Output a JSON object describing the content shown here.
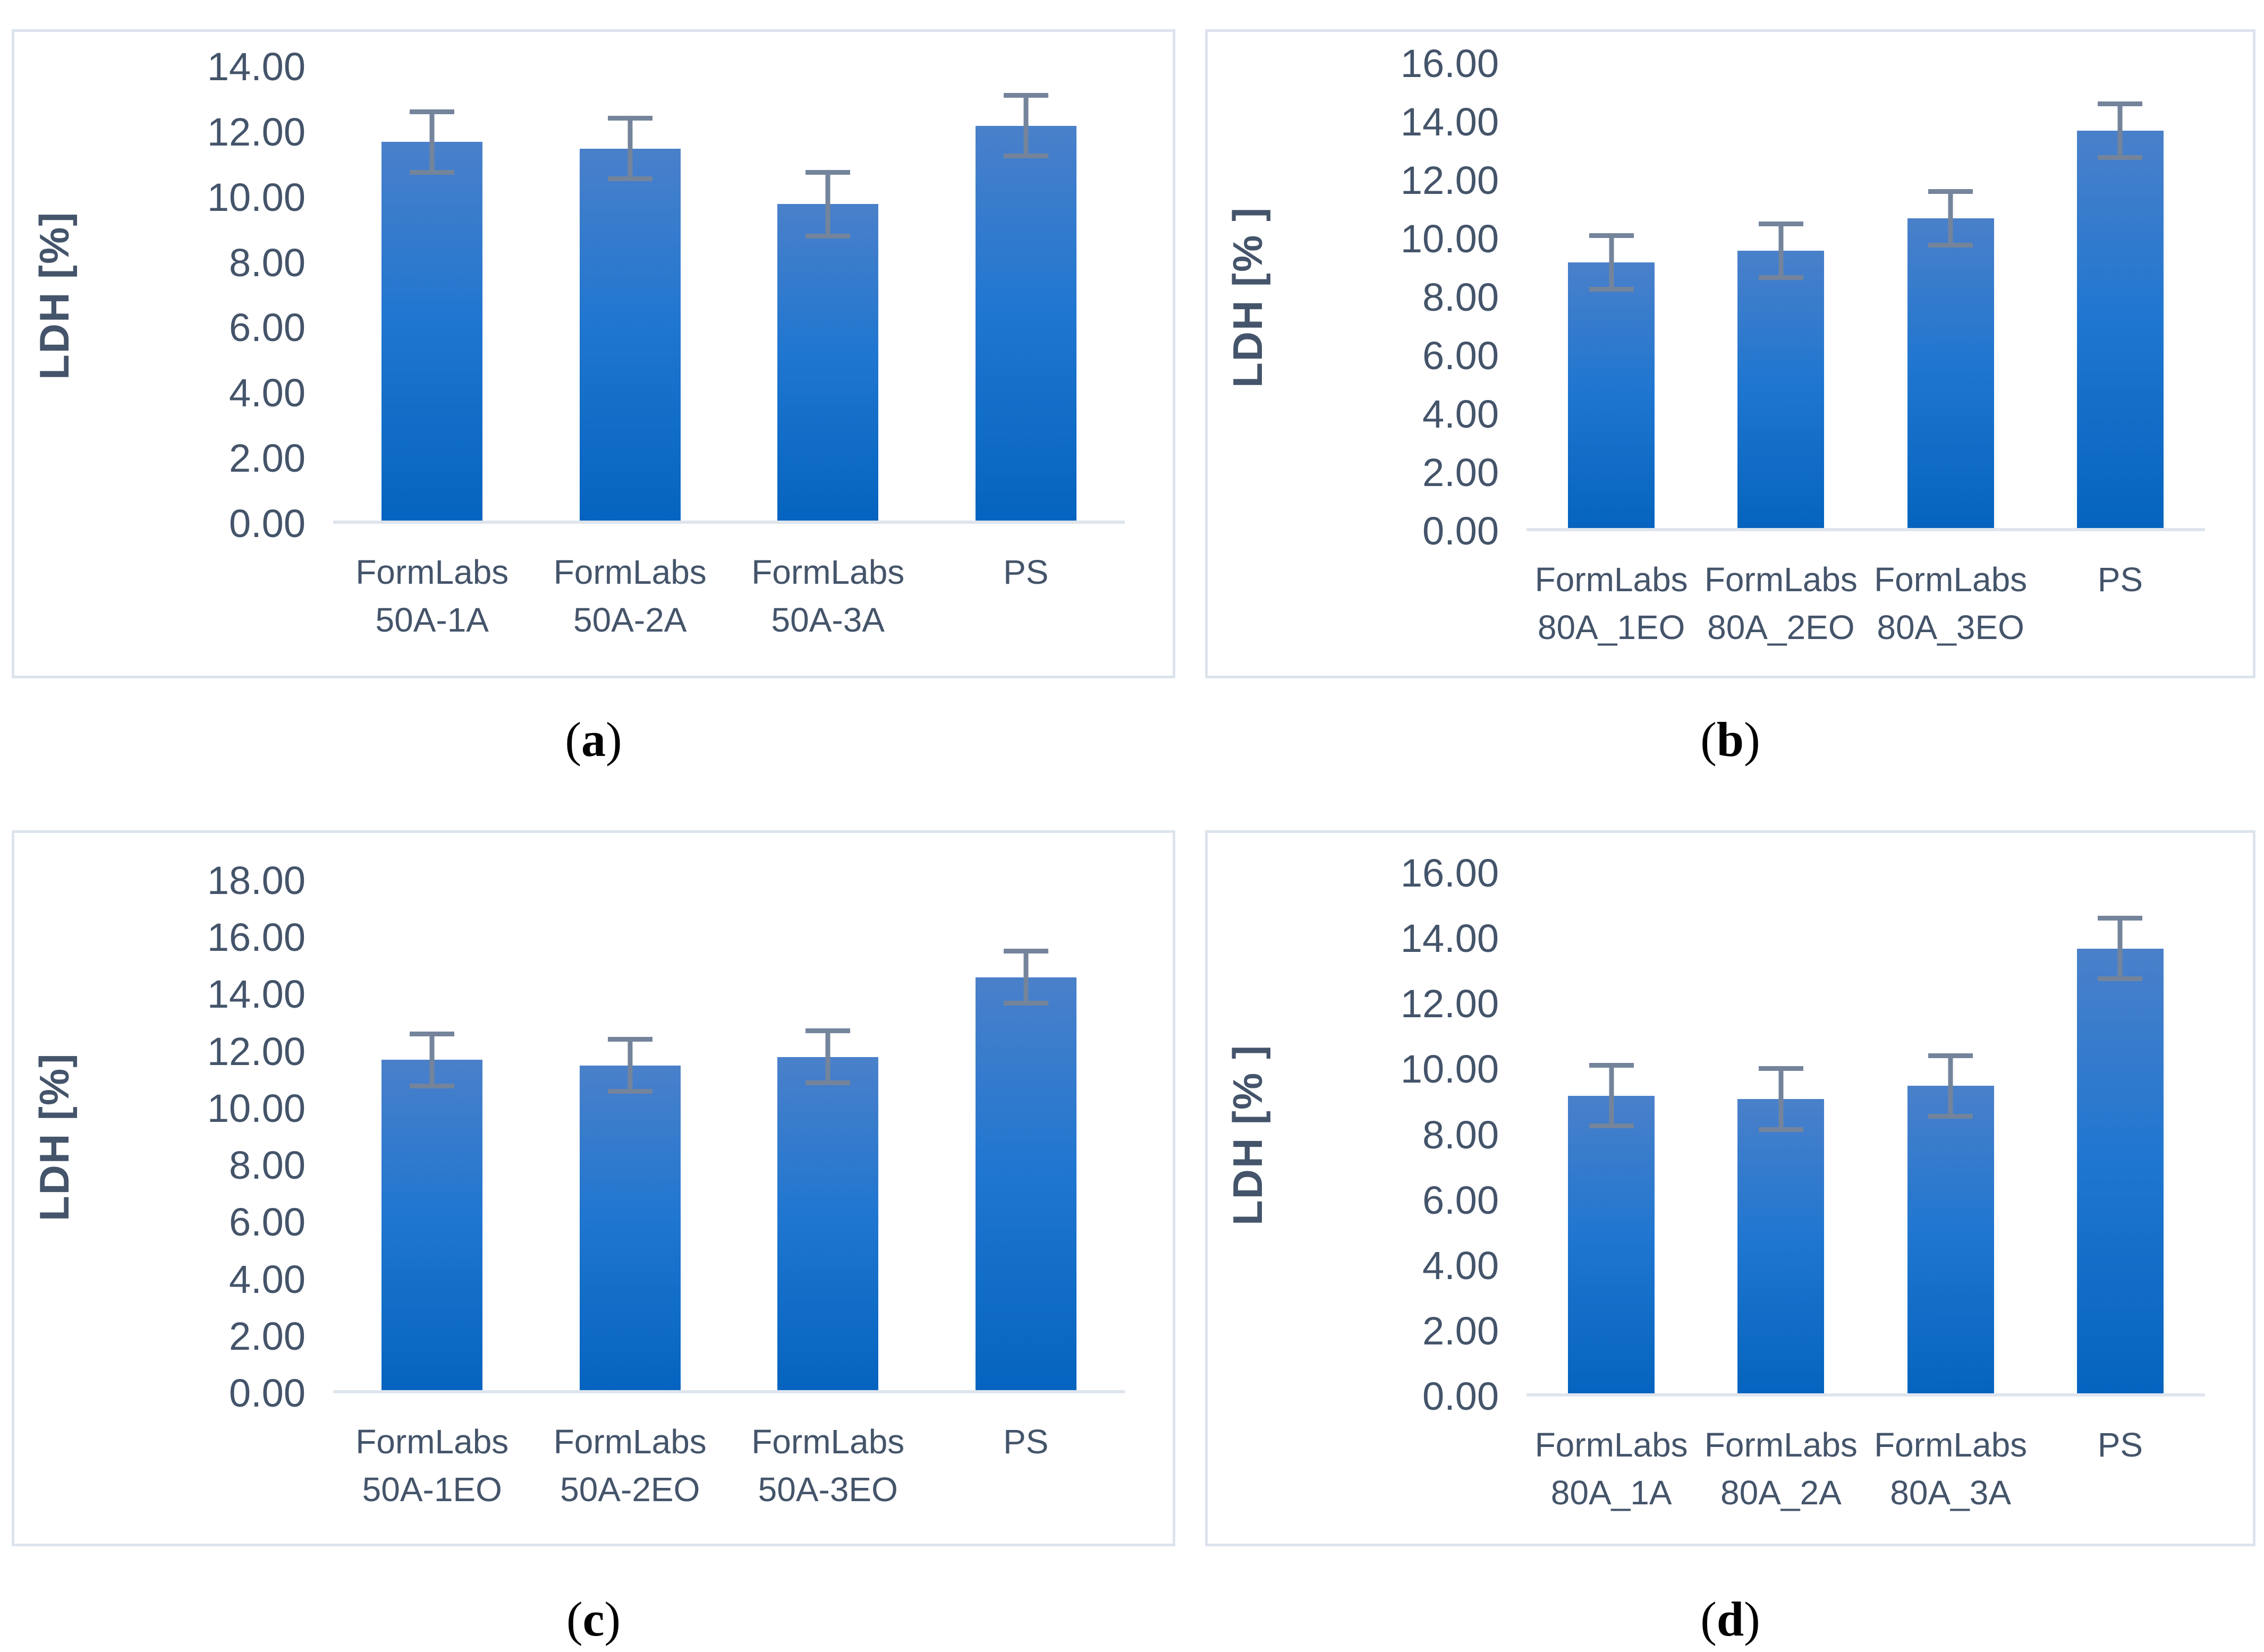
{
  "page": {
    "background": "#ffffff"
  },
  "colors": {
    "text": "#44546a",
    "bar_gradient_top": "#4a80ca",
    "bar_gradient_mid": "#1f76d0",
    "bar_gradient_bottom": "#0564bf",
    "error_bar": "#74849b",
    "axis_line": "#dfe5ed",
    "panel_border": "#dce3ed",
    "caption_text": "#000000"
  },
  "chart_data": [
    {
      "type": "bar",
      "panel": "a",
      "caption": "a",
      "title": "",
      "xlabel": "",
      "ylabel": "LDH [%]",
      "ylim": [
        0,
        14
      ],
      "ytick_step": 2,
      "yticks": [
        "0.00",
        "2.00",
        "4.00",
        "6.00",
        "8.00",
        "10.00",
        "12.00",
        "14.00"
      ],
      "grid": false,
      "legend_position": "none",
      "categories": [
        [
          "FormLabs",
          "50A-1A"
        ],
        [
          "FormLabs",
          "50A-2A"
        ],
        [
          "FormLabs",
          "50A-3A"
        ],
        [
          "PS",
          ""
        ]
      ],
      "values": [
        11.6,
        11.4,
        9.7,
        12.1
      ],
      "errors": [
        1.0,
        1.0,
        1.05,
        1.0
      ]
    },
    {
      "type": "bar",
      "panel": "b",
      "caption": "b",
      "title": "",
      "xlabel": "",
      "ylabel": "LDH [% ]",
      "ylim": [
        0,
        16
      ],
      "ytick_step": 2,
      "yticks": [
        "0.00",
        "2.00",
        "4.00",
        "6.00",
        "8.00",
        "10.00",
        "12.00",
        "14.00",
        "16.00"
      ],
      "grid": false,
      "legend_position": "none",
      "categories": [
        [
          "FormLabs",
          "80A_1EO"
        ],
        [
          "FormLabs",
          "80A_2EO"
        ],
        [
          "FormLabs",
          "80A_3EO"
        ],
        [
          "PS",
          ""
        ]
      ],
      "values": [
        9.1,
        9.5,
        10.6,
        13.6
      ],
      "errors": [
        1.0,
        1.0,
        1.0,
        1.0
      ]
    },
    {
      "type": "bar",
      "panel": "c",
      "caption": "c",
      "title": "",
      "xlabel": "",
      "ylabel": "LDH [%]",
      "ylim": [
        0,
        18
      ],
      "ytick_step": 2,
      "yticks": [
        "0.00",
        "2.00",
        "4.00",
        "6.00",
        "8.00",
        "10.00",
        "12.00",
        "14.00",
        "16.00",
        "18.00"
      ],
      "grid": false,
      "legend_position": "none",
      "categories": [
        [
          "FormLabs",
          "50A-1EO"
        ],
        [
          "FormLabs",
          "50A-2EO"
        ],
        [
          "FormLabs",
          "50A-3EO"
        ],
        [
          "PS",
          ""
        ]
      ],
      "values": [
        11.6,
        11.4,
        11.7,
        14.5
      ],
      "errors": [
        1.0,
        1.0,
        1.0,
        1.0
      ]
    },
    {
      "type": "bar",
      "panel": "d",
      "caption": "d",
      "title": "",
      "xlabel": "",
      "ylabel": "LDH [% ]",
      "ylim": [
        0,
        16
      ],
      "ytick_step": 2,
      "yticks": [
        "0.00",
        "2.00",
        "4.00",
        "6.00",
        "8.00",
        "10.00",
        "12.00",
        "14.00",
        "16.00"
      ],
      "grid": false,
      "legend_position": "none",
      "categories": [
        [
          "FormLabs",
          "80A_1A"
        ],
        [
          "FormLabs",
          "80A_2A"
        ],
        [
          "FormLabs",
          "80A_3A"
        ],
        [
          "PS",
          ""
        ]
      ],
      "values": [
        9.1,
        9.0,
        9.4,
        13.6
      ],
      "errors": [
        1.0,
        1.0,
        1.0,
        1.0
      ]
    }
  ]
}
